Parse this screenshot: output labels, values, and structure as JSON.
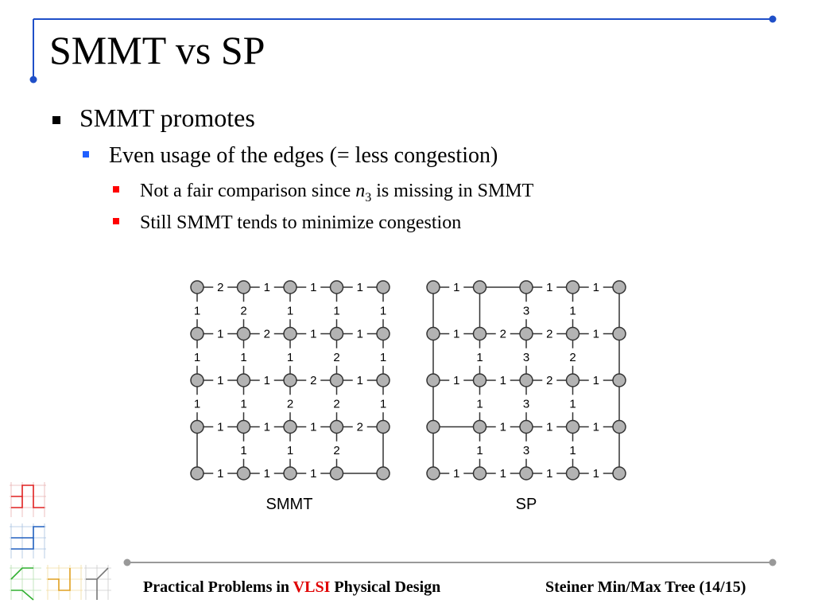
{
  "slide": {
    "title": "SMMT vs SP",
    "bullets": {
      "level1": "SMMT promotes",
      "level2": "Even usage of the edges (= less congestion)",
      "level3a_pre": "Not a fair comparison since ",
      "level3a_var": "n",
      "level3a_sub": "3",
      "level3a_post": " is missing in SMMT",
      "level3b": "Still SMMT tends to minimize congestion"
    },
    "diagram_labels": {
      "left": "SMMT",
      "right": "SP"
    },
    "footer": {
      "left_pre": "Practical Problems in ",
      "left_accent": "VLSI",
      "left_post": " Physical Design",
      "right": "Steiner Min/Max Tree (14/15)"
    },
    "colors": {
      "accent_line": "#1f4fc8",
      "footer_line": "#888888",
      "node_fill": "#b3b3b3",
      "node_stroke": "#333333",
      "vlsi": "#e00000"
    }
  },
  "grids": {
    "smmt": {
      "h": [
        [
          "2",
          "1",
          "1",
          "1"
        ],
        [
          "1",
          "2",
          "1",
          "1"
        ],
        [
          "1",
          "1",
          "2",
          "1"
        ],
        [
          "1",
          "1",
          "1",
          "2"
        ],
        [
          "1",
          "1",
          "1",
          ""
        ]
      ],
      "v": [
        [
          "1",
          "2",
          "1",
          "1",
          "1"
        ],
        [
          "1",
          "1",
          "1",
          "2",
          "1"
        ],
        [
          "1",
          "1",
          "2",
          "2",
          "1"
        ],
        [
          "",
          "1",
          "1",
          "2",
          ""
        ]
      ]
    },
    "sp": {
      "h": [
        [
          "1",
          "",
          "1",
          "1"
        ],
        [
          "1",
          "2",
          "2",
          "1"
        ],
        [
          "1",
          "1",
          "2",
          "1"
        ],
        [
          "",
          "1",
          "1",
          "1"
        ],
        [
          "1",
          "1",
          "1",
          "1"
        ]
      ],
      "v": [
        [
          "",
          "",
          "3",
          "1",
          ""
        ],
        [
          "",
          "1",
          "3",
          "2",
          ""
        ],
        [
          "",
          "1",
          "3",
          "1",
          ""
        ],
        [
          "",
          "1",
          "3",
          "1",
          ""
        ]
      ]
    }
  }
}
